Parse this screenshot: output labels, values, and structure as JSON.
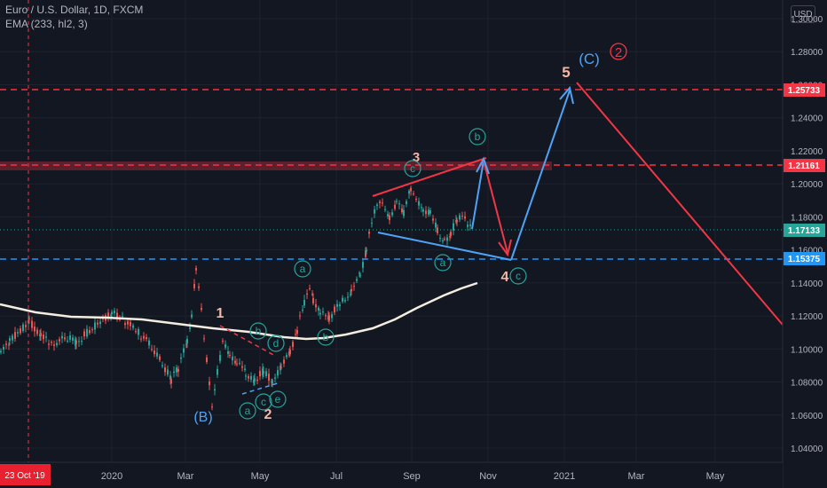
{
  "header": {
    "symbol_line": "Euro / U.S. Dollar, 1D, FXCM",
    "indicator_line": "EMA (233, hl2, 3)"
  },
  "currency_button": "USD",
  "crosshair_date": "23 Oct '19",
  "chart_data": {
    "type": "candlestick",
    "symbol": "EURUSD",
    "ylim": [
      1.03,
      1.3
    ],
    "y_ticks": [
      "1.04000",
      "1.06000",
      "1.08000",
      "1.10000",
      "1.12000",
      "1.14000",
      "1.16000",
      "1.18000",
      "1.20000",
      "1.22000",
      "1.24000",
      "1.26000",
      "1.28000",
      "1.30000"
    ],
    "x_ticks": [
      "2020",
      "Mar",
      "May",
      "Jul",
      "Sep",
      "Nov",
      "2021",
      "Mar",
      "May"
    ],
    "price_labels": [
      {
        "text": "1.25733",
        "value": 1.25733,
        "color": "#f23645"
      },
      {
        "text": "1.21161",
        "value": 1.21161,
        "color": "#f23645"
      },
      {
        "text": "1.17133",
        "value": 1.17133,
        "color": "#26a69a"
      },
      {
        "text": "1.15375",
        "value": 1.15375,
        "color": "#2196f3"
      }
    ],
    "wave_labels": [
      {
        "text": "(C)",
        "color": "#4fa3f7"
      },
      {
        "text": "2",
        "color": "#f23645",
        "circled": true
      },
      {
        "text": "5",
        "color": "#f5b8a6"
      },
      {
        "text": "3",
        "color": "#f5b8a6"
      },
      {
        "text": "4",
        "color": "#f5b8a6"
      },
      {
        "text": "1",
        "color": "#f5b8a6"
      },
      {
        "text": "2",
        "color": "#f5b8a6"
      },
      {
        "text": "(B)",
        "color": "#4fa3f7"
      },
      {
        "text": "a",
        "color": "#26a69a",
        "circled": true
      },
      {
        "text": "b",
        "color": "#26a69a",
        "circled": true
      },
      {
        "text": "c",
        "color": "#26a69a",
        "circled": true
      },
      {
        "text": "d",
        "color": "#26a69a",
        "circled": true
      },
      {
        "text": "e",
        "color": "#26a69a",
        "circled": true
      }
    ],
    "colors": {
      "up": "#26a69a",
      "down": "#ef5350",
      "ema": "#f5eee0",
      "resistance": "#f23645",
      "support": "#2196f3",
      "projection_up": "#4fa3f7",
      "projection_down": "#f23645"
    }
  }
}
